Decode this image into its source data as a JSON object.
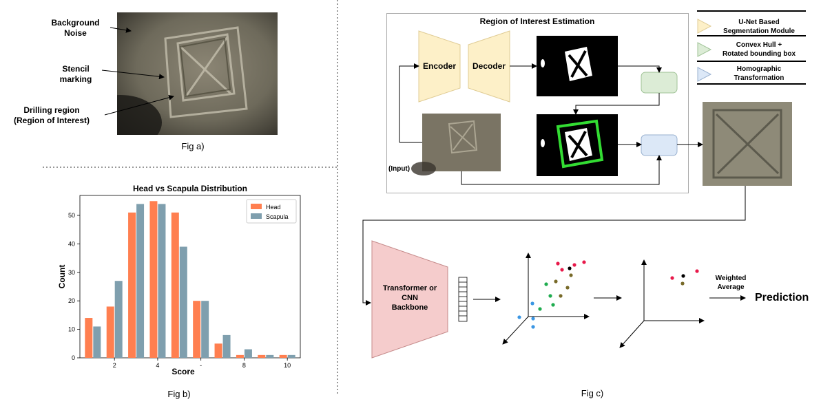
{
  "fig_a": {
    "labels": {
      "background": "Background\nNoise",
      "stencil": "Stencil\nmarking",
      "drilling": "Drilling region\n(Region of Interest)"
    },
    "caption": "Fig a)"
  },
  "fig_b": {
    "caption": "Fig b)"
  },
  "chart_data": {
    "type": "bar",
    "title": "Head vs Scapula Distribution",
    "xlabel": "Score",
    "ylabel": "Count",
    "categories": [
      1,
      2,
      3,
      4,
      5,
      6,
      7,
      8,
      9,
      10
    ],
    "xticks": [
      "2",
      "4",
      "-",
      "8",
      "10"
    ],
    "xtick_values": [
      2,
      4,
      6,
      8,
      10
    ],
    "ylim": [
      0,
      57
    ],
    "yticks": [
      0,
      10,
      20,
      30,
      40,
      50
    ],
    "legend_position": "top-right",
    "series": [
      {
        "name": "Head",
        "color": "#ff7f50",
        "values": [
          14,
          18,
          51,
          55,
          51,
          20,
          5,
          1,
          1,
          1
        ]
      },
      {
        "name": "Scapula",
        "color": "#7f9fae",
        "values": [
          11,
          27,
          54,
          54,
          39,
          20,
          8,
          3,
          1,
          1
        ]
      }
    ]
  },
  "fig_c": {
    "roi_title": "Region of Interest Estimation",
    "encoder": "Encoder",
    "decoder": "Decoder",
    "input_label": "(Input)",
    "legend": [
      {
        "text": "U-Net Based\nSegmentation Module",
        "color": "#fdf0c8"
      },
      {
        "text": "Convex Hull +\nRotated bounding box",
        "color": "#dcecd6"
      },
      {
        "text": "Homographic\nTransformation",
        "color": "#dce8f7"
      }
    ],
    "backbone": "Transformer or\nCNN\nBackbone",
    "weighted_average": "Weighted\nAverage",
    "prediction": "Prediction",
    "caption": "Fig c)"
  }
}
